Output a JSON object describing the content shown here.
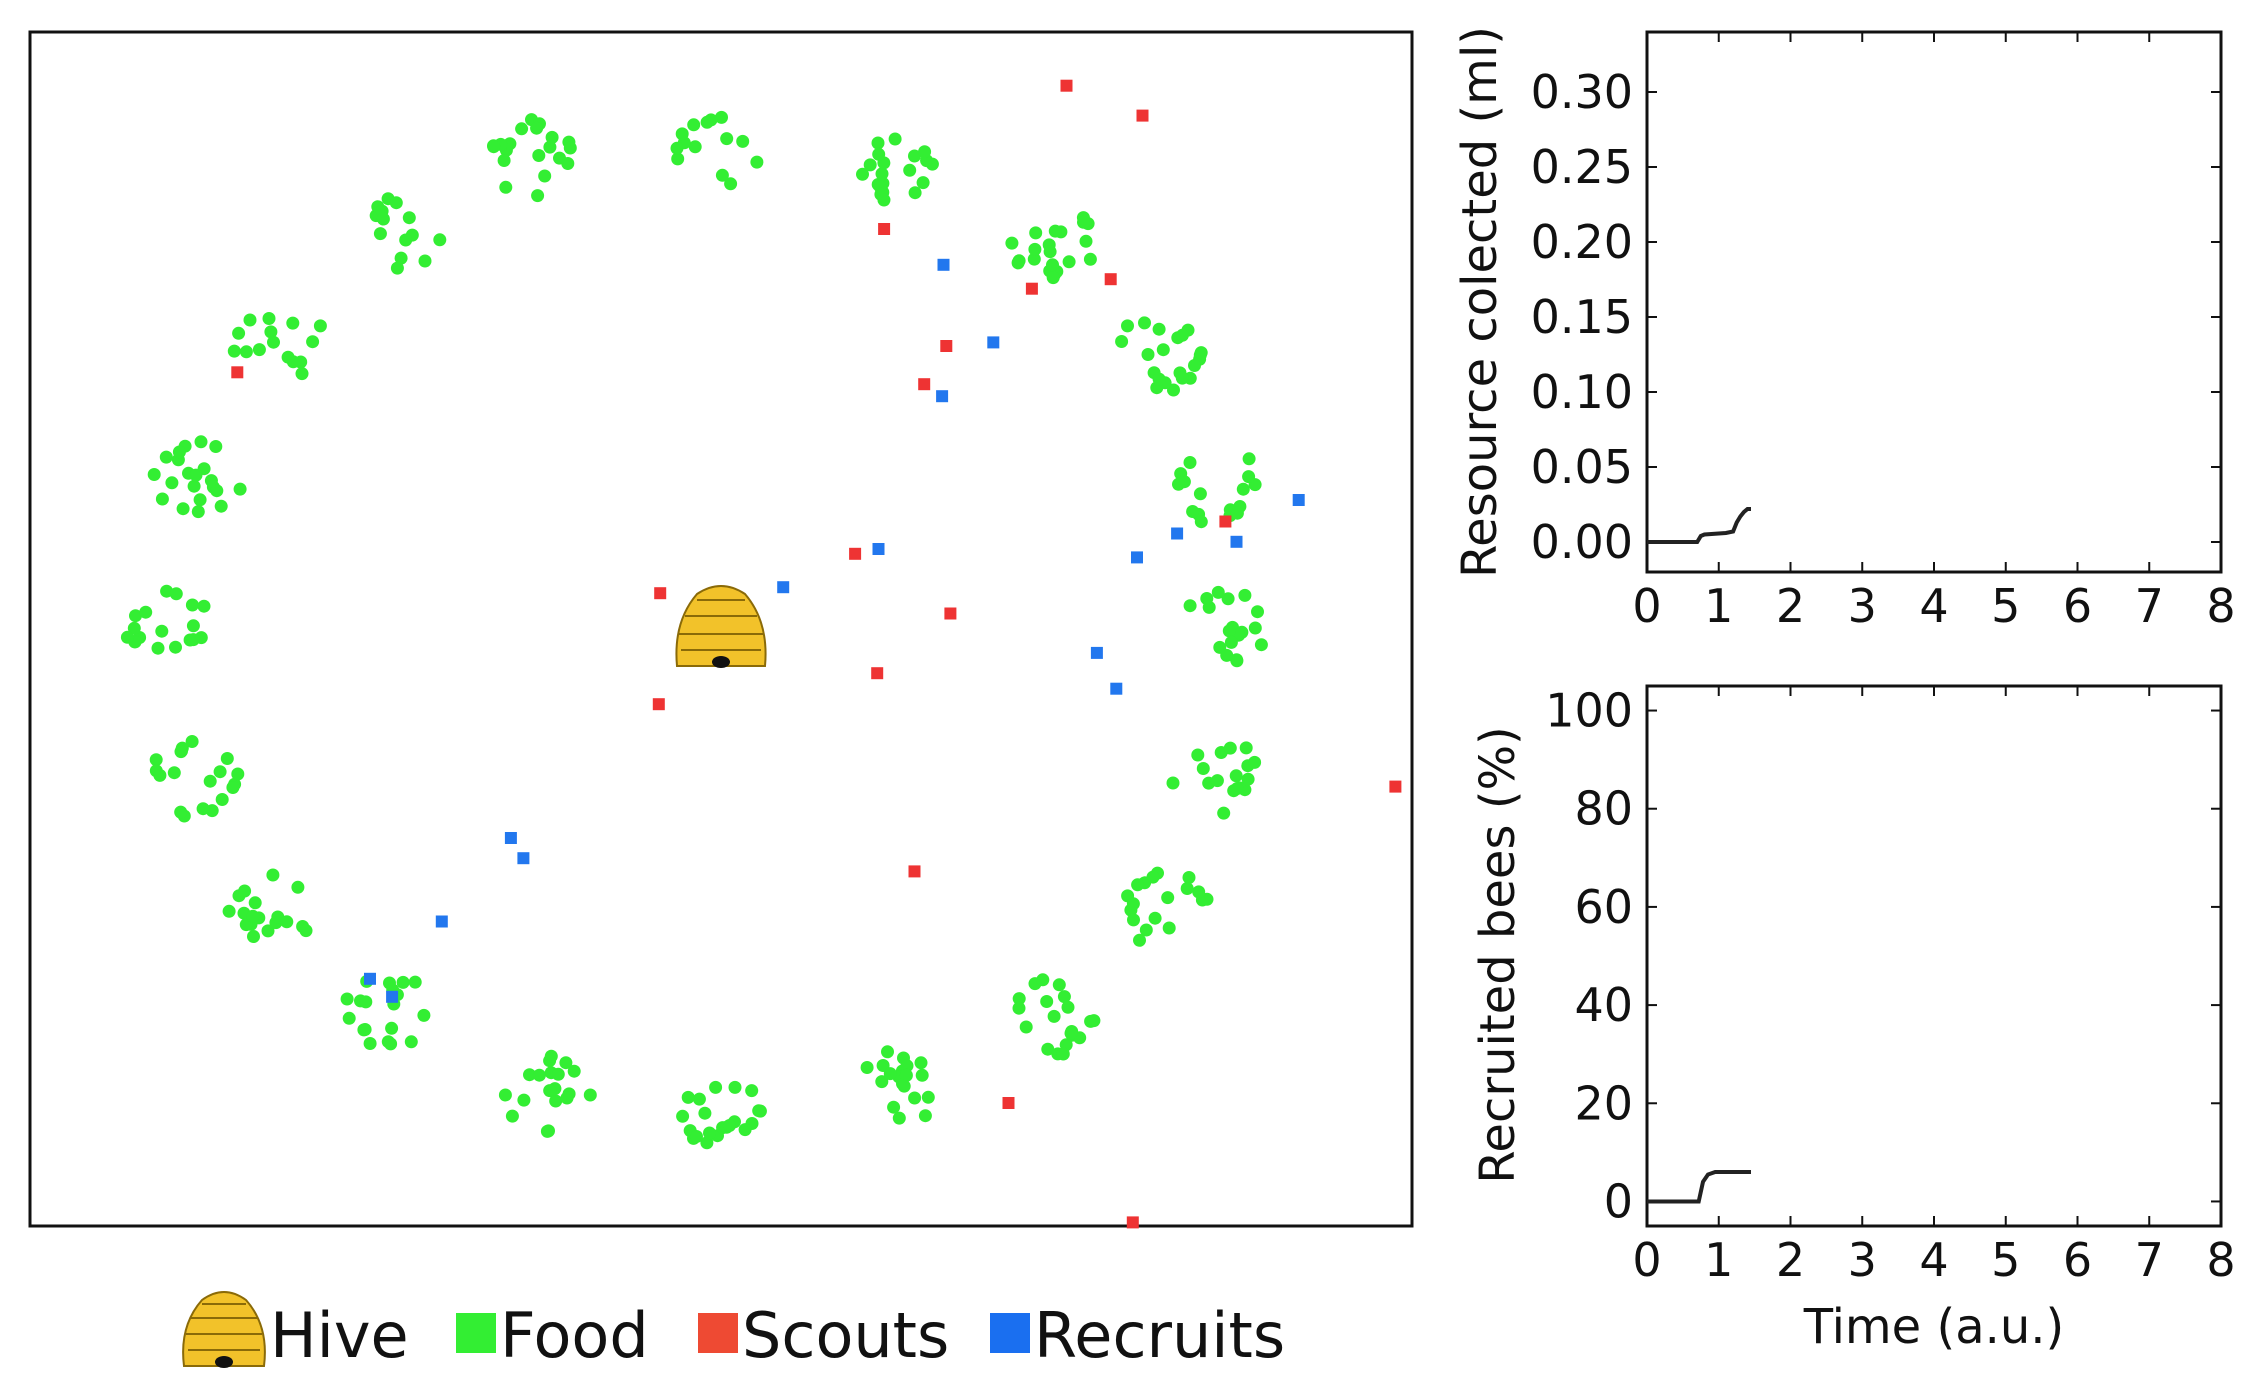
{
  "colors": {
    "food": "#33ee33",
    "scouts": "#ee3333",
    "recruits": "#2277ee",
    "hive": "#f2c22a",
    "line": "#111111"
  },
  "legend": {
    "items": [
      {
        "label": "Hive",
        "icon": "beehive-icon"
      },
      {
        "label": "Food",
        "icon": "green-square"
      },
      {
        "label": "Scouts",
        "icon": "red-square"
      },
      {
        "label": "Recruits",
        "icon": "blue-square"
      }
    ]
  },
  "chart_data": [
    {
      "type": "scatter",
      "name": "simulation-arena",
      "xlim": [
        0,
        1000
      ],
      "ylim": [
        0,
        1000
      ],
      "hive": {
        "x": 500,
        "y": 500
      },
      "food_sources": [
        {
          "x": 500,
          "y": 900
        },
        {
          "x": 630,
          "y": 880
        },
        {
          "x": 738,
          "y": 825
        },
        {
          "x": 815,
          "y": 730
        },
        {
          "x": 860,
          "y": 620
        },
        {
          "x": 865,
          "y": 500
        },
        {
          "x": 860,
          "y": 375
        },
        {
          "x": 820,
          "y": 265
        },
        {
          "x": 740,
          "y": 175
        },
        {
          "x": 625,
          "y": 115
        },
        {
          "x": 500,
          "y": 90
        },
        {
          "x": 375,
          "y": 110
        },
        {
          "x": 260,
          "y": 180
        },
        {
          "x": 175,
          "y": 265
        },
        {
          "x": 120,
          "y": 375
        },
        {
          "x": 100,
          "y": 500
        },
        {
          "x": 120,
          "y": 625
        },
        {
          "x": 180,
          "y": 740
        },
        {
          "x": 265,
          "y": 830
        },
        {
          "x": 365,
          "y": 895
        }
      ],
      "scouts": [
        {
          "x": 750,
          "y": 955
        },
        {
          "x": 805,
          "y": 930
        },
        {
          "x": 618,
          "y": 835
        },
        {
          "x": 725,
          "y": 785
        },
        {
          "x": 782,
          "y": 793
        },
        {
          "x": 663,
          "y": 737
        },
        {
          "x": 647,
          "y": 705
        },
        {
          "x": 150,
          "y": 715
        },
        {
          "x": 865,
          "y": 590
        },
        {
          "x": 597,
          "y": 563
        },
        {
          "x": 456,
          "y": 530
        },
        {
          "x": 666,
          "y": 513
        },
        {
          "x": 480,
          "y": 488
        },
        {
          "x": 613,
          "y": 463
        },
        {
          "x": 455,
          "y": 437
        },
        {
          "x": 988,
          "y": 368
        },
        {
          "x": 640,
          "y": 297
        },
        {
          "x": 708,
          "y": 103
        },
        {
          "x": 798,
          "y": 3
        }
      ],
      "recruits": [
        {
          "x": 661,
          "y": 805
        },
        {
          "x": 697,
          "y": 740
        },
        {
          "x": 660,
          "y": 695
        },
        {
          "x": 918,
          "y": 608
        },
        {
          "x": 830,
          "y": 580
        },
        {
          "x": 873,
          "y": 573
        },
        {
          "x": 801,
          "y": 560
        },
        {
          "x": 614,
          "y": 567
        },
        {
          "x": 545,
          "y": 535
        },
        {
          "x": 772,
          "y": 480
        },
        {
          "x": 786,
          "y": 450
        },
        {
          "x": 348,
          "y": 325
        },
        {
          "x": 357,
          "y": 308
        },
        {
          "x": 298,
          "y": 255
        },
        {
          "x": 246,
          "y": 207
        },
        {
          "x": 262,
          "y": 192
        }
      ]
    },
    {
      "type": "line",
      "name": "resource-collected",
      "ylabel": "Resource colected (ml)",
      "xlim": [
        0,
        8
      ],
      "ylim": [
        -0.02,
        0.34
      ],
      "xticks": [
        "0",
        "1",
        "2",
        "3",
        "4",
        "5",
        "6",
        "7",
        "8"
      ],
      "yticks": [
        "0.00",
        "0.05",
        "0.10",
        "0.15",
        "0.20",
        "0.25",
        "0.30"
      ],
      "x": [
        0,
        0.7,
        0.75,
        0.8,
        1.1,
        1.2,
        1.25,
        1.3,
        1.35,
        1.4,
        1.45
      ],
      "y": [
        0,
        0,
        0.004,
        0.005,
        0.006,
        0.007,
        0.013,
        0.017,
        0.02,
        0.022,
        0.022
      ]
    },
    {
      "type": "line",
      "name": "recruited-bees",
      "ylabel": "Recruited bees (%)",
      "xlabel": "Time (a.u.)",
      "xlim": [
        0,
        8
      ],
      "ylim": [
        -5,
        105
      ],
      "xticks": [
        "0",
        "1",
        "2",
        "3",
        "4",
        "5",
        "6",
        "7",
        "8"
      ],
      "yticks": [
        "0",
        "20",
        "40",
        "60",
        "80",
        "100"
      ],
      "x": [
        0,
        0.72,
        0.78,
        0.85,
        0.95,
        1.05,
        1.45
      ],
      "y": [
        0,
        0,
        4,
        5.5,
        6,
        6,
        6
      ]
    }
  ]
}
